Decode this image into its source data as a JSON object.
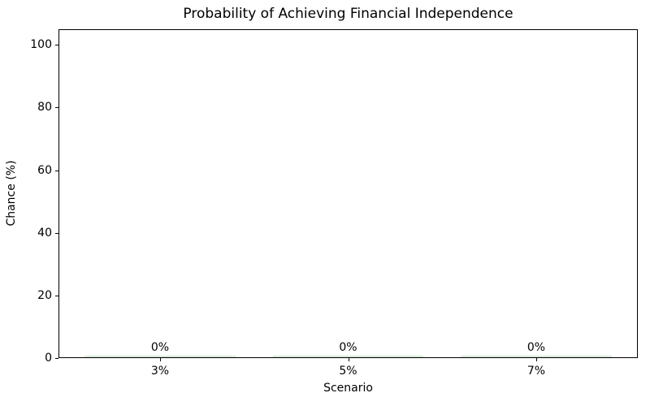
{
  "chart_data": {
    "type": "bar",
    "title": "Probability of Achieving Financial Independence",
    "xlabel": "Scenario",
    "ylabel": "Chance (%)",
    "categories": [
      "3%",
      "5%",
      "7%"
    ],
    "values": [
      0,
      0,
      0
    ],
    "bar_value_labels": [
      "0%",
      "0%",
      "0%"
    ],
    "yticks": [
      0,
      20,
      40,
      60,
      80,
      100
    ],
    "ylim": [
      0,
      105
    ],
    "grid": false,
    "legend": "none",
    "bar_color": "#d5e8d5",
    "axis_color": "#000000",
    "text_color": "#000000",
    "background_color": "#ffffff"
  }
}
